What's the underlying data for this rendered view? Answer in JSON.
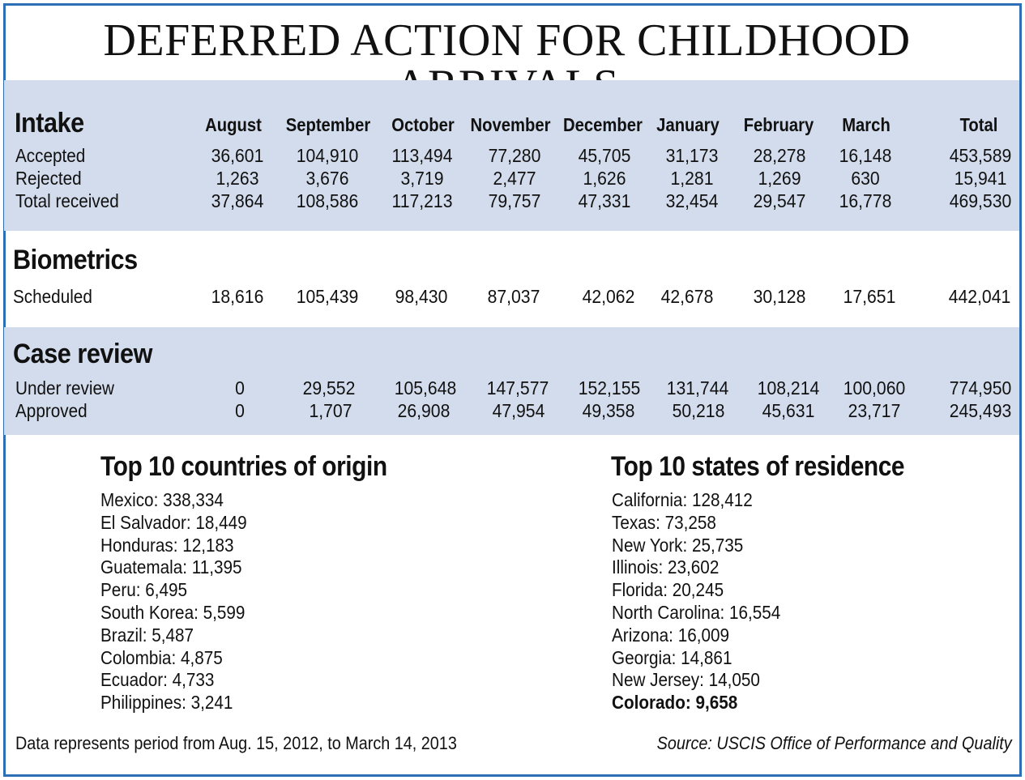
{
  "title": "DEFERRED ACTION FOR CHILDHOOD ARRIVALS",
  "months": [
    "August",
    "September",
    "October",
    "November",
    "December",
    "January",
    "February",
    "March",
    "Total"
  ],
  "intake": {
    "title": "Intake",
    "rows": [
      {
        "label": "Accepted",
        "values": [
          "36,601",
          "104,910",
          "113,494",
          "77,280",
          "45,705",
          "31,173",
          "28,278",
          "16,148",
          "453,589"
        ]
      },
      {
        "label": "Rejected",
        "values": [
          "1,263",
          "3,676",
          "3,719",
          "2,477",
          "1,626",
          "1,281",
          "1,269",
          "630",
          "15,941"
        ]
      },
      {
        "label": "Total received",
        "values": [
          "37,864",
          "108,586",
          "117,213",
          "79,757",
          "47,331",
          "32,454",
          "29,547",
          "16,778",
          "469,530"
        ]
      }
    ]
  },
  "biometrics": {
    "title": "Biometrics",
    "rows": [
      {
        "label": "Scheduled",
        "values": [
          "18,616",
          "105,439",
          "98,430",
          "87,037",
          "42,062",
          "42,678",
          "30,128",
          "17,651",
          "442,041"
        ]
      }
    ]
  },
  "case_review": {
    "title": "Case review",
    "rows": [
      {
        "label": "Under review",
        "values": [
          "0",
          "29,552",
          "105,648",
          "147,577",
          "152,155",
          "131,744",
          "108,214",
          "100,060",
          "774,950"
        ]
      },
      {
        "label": "Approved",
        "values": [
          "0",
          "1,707",
          "26,908",
          "47,954",
          "49,358",
          "50,218",
          "45,631",
          "23,717",
          "245,493"
        ]
      }
    ]
  },
  "countries": {
    "title": "Top 10 countries of origin",
    "items": [
      "Mexico: 338,334",
      "El Salvador: 18,449",
      "Honduras: 12,183",
      "Guatemala: 11,395",
      "Peru: 6,495",
      "South Korea: 5,599",
      "Brazil: 5,487",
      "Colombia: 4,875",
      "Ecuador: 4,733",
      "Philippines: 3,241"
    ]
  },
  "states": {
    "title": "Top 10 states of residence",
    "items": [
      "California: 128,412",
      "Texas: 73,258",
      "New York: 25,735",
      "Illinois: 23,602",
      "Florida: 20,245",
      "North Carolina: 16,554",
      "Arizona: 16,009",
      "Georgia: 14,861",
      "New Jersey: 14,050",
      "Colorado: 9,658"
    ],
    "highlighted": "Colorado: 9,658"
  },
  "footnote": "Data represents period from Aug. 15, 2012, to March 14, 2013",
  "source": "Source: USCIS Office of Performance and Quality",
  "colors": {
    "border": "#2c6fb4",
    "band": "#d3dcec"
  }
}
